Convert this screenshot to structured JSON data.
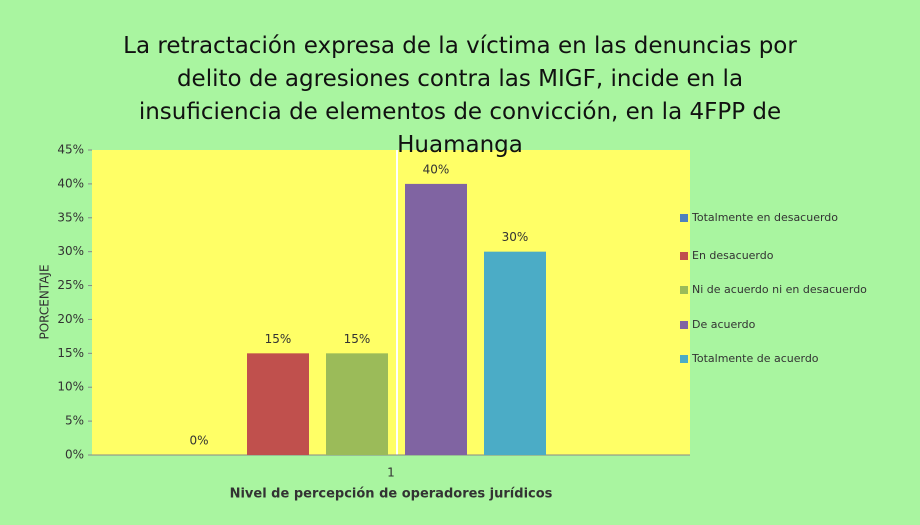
{
  "chart_data": {
    "type": "bar",
    "title": "La retractación expresa de la víctima en las denuncias por delito de agresiones contra las MIGF, incide en la insuficiencia de elementos de convicción, en la 4FPP de Huamanga",
    "x_label": "Nivel de percepción de operadores jurídicos",
    "y_label": "PORCENTAJE",
    "categories": [
      "1"
    ],
    "series": [
      {
        "name": "Totalmente en desacuerdo",
        "color": "#4f81bd",
        "values": [
          0
        ],
        "value_labels": [
          "0%"
        ]
      },
      {
        "name": "En desacuerdo",
        "color": "#c0504d",
        "values": [
          15
        ],
        "value_labels": [
          "15%"
        ]
      },
      {
        "name": "Ni de acuerdo ni en desacuerdo",
        "color": "#9bbb59",
        "values": [
          15
        ],
        "value_labels": [
          "15%"
        ]
      },
      {
        "name": "De acuerdo",
        "color": "#8064a2",
        "values": [
          40
        ],
        "value_labels": [
          "40%"
        ]
      },
      {
        "name": "Totalmente de acuerdo",
        "color": "#4bacc6",
        "values": [
          30
        ],
        "value_labels": [
          "30%"
        ]
      }
    ],
    "ylim": [
      0,
      45
    ],
    "yticks": [
      {
        "value": 0,
        "label": "0%"
      },
      {
        "value": 5,
        "label": "5%"
      },
      {
        "value": 10,
        "label": "10%"
      },
      {
        "value": 15,
        "label": "15%"
      },
      {
        "value": 20,
        "label": "20%"
      },
      {
        "value": 25,
        "label": "25%"
      },
      {
        "value": 30,
        "label": "30%"
      },
      {
        "value": 35,
        "label": "35%"
      },
      {
        "value": 40,
        "label": "40%"
      },
      {
        "value": 45,
        "label": "45%"
      }
    ],
    "legend": "right"
  }
}
